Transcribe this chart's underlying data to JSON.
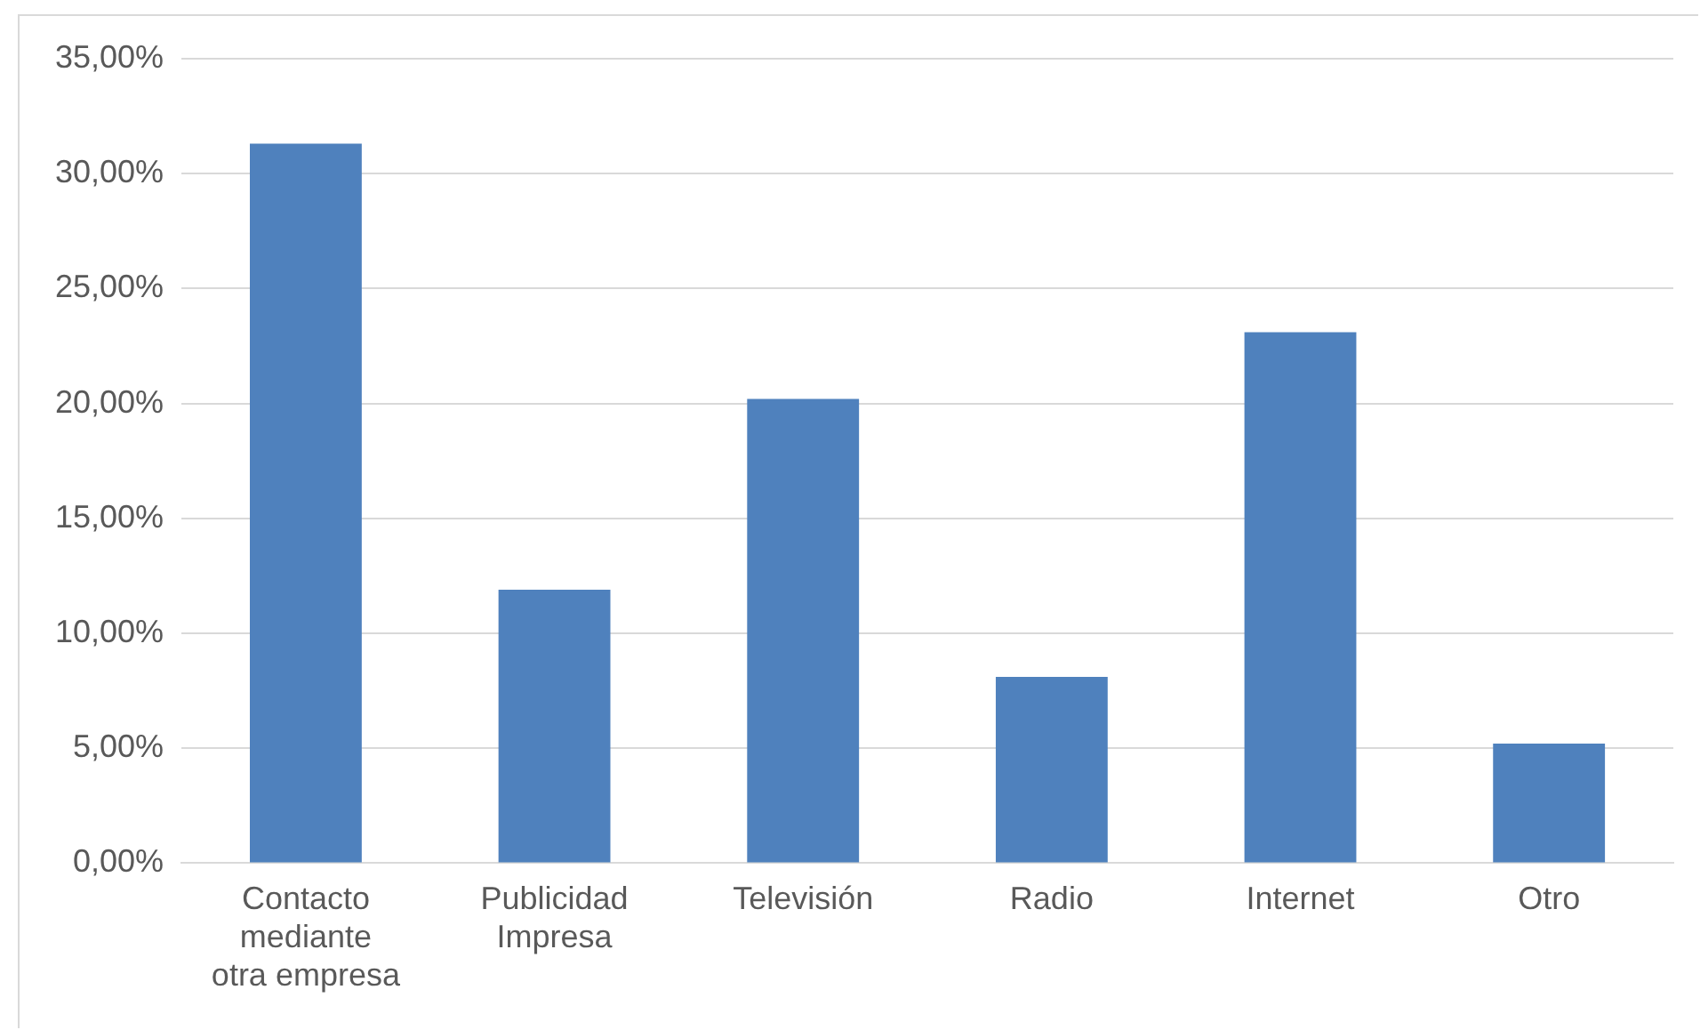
{
  "chart_data": {
    "type": "bar",
    "categories": [
      "Contacto mediante otra empresa",
      "Publicidad Impresa",
      "Televisión",
      "Radio",
      "Internet",
      "Otro"
    ],
    "values": [
      31.3,
      11.9,
      20.2,
      8.1,
      23.1,
      5.2
    ],
    "color": "#4f81bd",
    "ylim": [
      0,
      35
    ],
    "yticks": [
      {
        "value": 0,
        "label": "0,00%"
      },
      {
        "value": 5,
        "label": "5,00%"
      },
      {
        "value": 10,
        "label": "10,00%"
      },
      {
        "value": 15,
        "label": "15,00%"
      },
      {
        "value": 20,
        "label": "20,00%"
      },
      {
        "value": 25,
        "label": "25,00%"
      },
      {
        "value": 30,
        "label": "30,00%"
      },
      {
        "value": 35,
        "label": "35,00%"
      }
    ],
    "grid": "y",
    "legend": false
  }
}
